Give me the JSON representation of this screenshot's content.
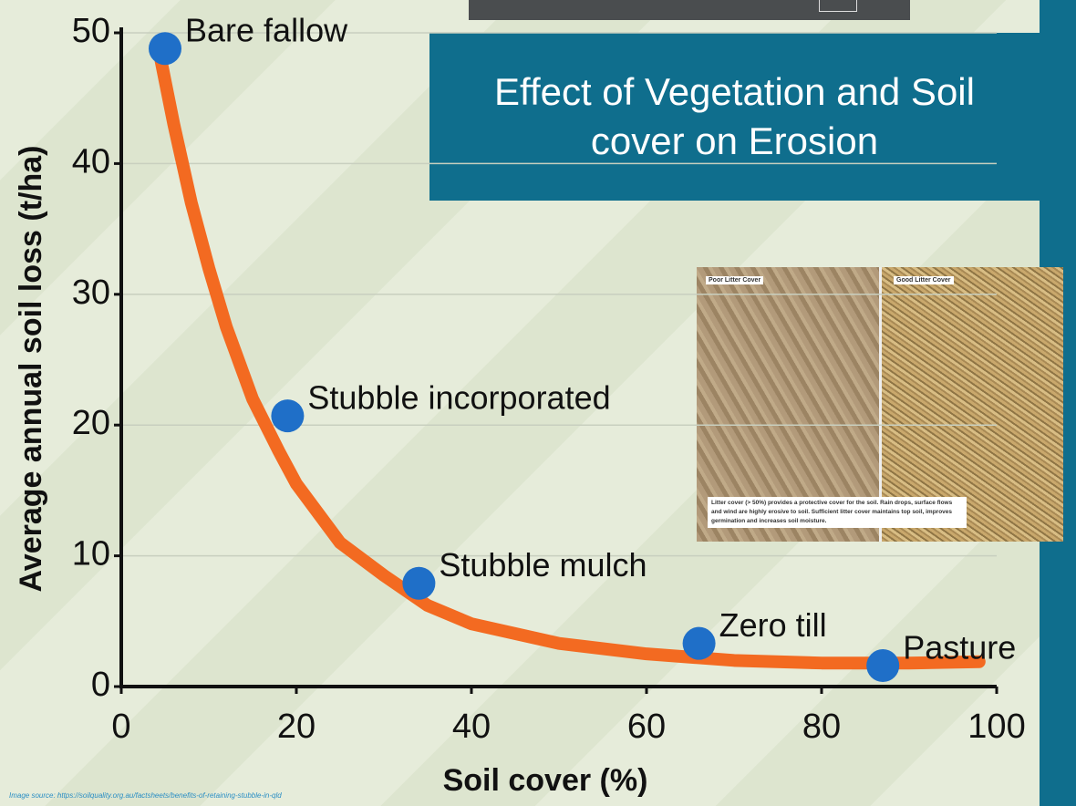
{
  "chart_data": {
    "type": "scatter",
    "title": "Effect of Vegetation and Soil cover on Erosion",
    "x_label": "Soil cover (%)",
    "y_label": "Average annual soil loss (t/ha)",
    "xlim": [
      0,
      100
    ],
    "ylim": [
      0,
      50
    ],
    "xticks": [
      0,
      20,
      40,
      60,
      80,
      100
    ],
    "yticks": [
      0,
      10,
      20,
      30,
      40,
      50
    ],
    "grid": true,
    "points": {
      "color": "#1f6fc8",
      "labels": [
        "Bare fallow",
        "Stubble incorporated",
        "Stubble mulch",
        "Zero till",
        "Pasture"
      ],
      "x": [
        5,
        19,
        34,
        66,
        87
      ],
      "y": [
        48.8,
        20.7,
        7.9,
        3.3,
        1.6
      ]
    },
    "curve": {
      "color": "#f36a21",
      "x": [
        4.5,
        6,
        8,
        10,
        12,
        15,
        18,
        20,
        25,
        30,
        35,
        40,
        50,
        60,
        70,
        80,
        90,
        98
      ],
      "y": [
        48,
        43,
        37,
        32,
        27.5,
        22,
        18,
        15.5,
        11,
        8.5,
        6.2,
        4.8,
        3.3,
        2.5,
        2.0,
        1.8,
        1.8,
        1.9
      ]
    },
    "source": "Image source: https://soilquality.org.au/factsheets/benefits-of-retaining-stubble-in-qld"
  },
  "inset": {
    "left_label": "Poor Litter Cover",
    "right_label": "Good Litter Cover",
    "caption": "Litter cover (> 50%) provides a protective cover for the soil. Rain drops, surface flows and wind are highly erosive to soil. Sufficient litter cover maintains top soil, improves germination and increases soil moisture."
  }
}
